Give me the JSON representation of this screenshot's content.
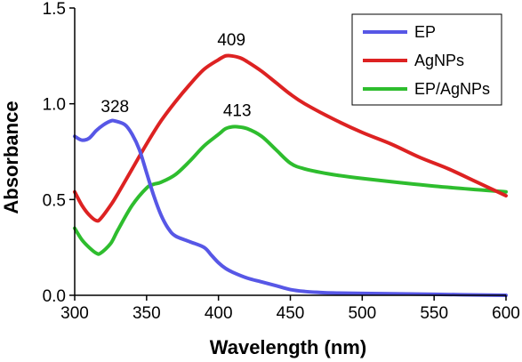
{
  "chart_data": {
    "type": "line",
    "xlabel": "Wavelength (nm)",
    "ylabel": "Absorbance",
    "xlim": [
      300,
      600
    ],
    "ylim": [
      0,
      1.5
    ],
    "x_ticks": [
      "300",
      "350",
      "400",
      "450",
      "500",
      "550",
      "600"
    ],
    "y_ticks": [
      "0.0",
      "0.5",
      "1.0",
      "1.5"
    ],
    "legend_position": "top-right",
    "annotations": [
      {
        "text": "328",
        "x": 328,
        "y": 0.91
      },
      {
        "text": "409",
        "x": 409,
        "y": 1.25
      },
      {
        "text": "413",
        "x": 413,
        "y": 0.88
      }
    ],
    "series": [
      {
        "name": "EP",
        "color": "#5757e6",
        "x": [
          300,
          305,
          310,
          315,
          320,
          325,
          328,
          335,
          340,
          345,
          350,
          355,
          360,
          365,
          370,
          380,
          390,
          395,
          400,
          405,
          410,
          420,
          430,
          440,
          450,
          460,
          470,
          480,
          500,
          550,
          600
        ],
        "y": [
          0.83,
          0.81,
          0.82,
          0.86,
          0.89,
          0.91,
          0.91,
          0.89,
          0.84,
          0.76,
          0.64,
          0.52,
          0.42,
          0.35,
          0.31,
          0.28,
          0.25,
          0.21,
          0.17,
          0.14,
          0.12,
          0.09,
          0.07,
          0.05,
          0.03,
          0.02,
          0.015,
          0.012,
          0.01,
          0.005,
          0.0
        ]
      },
      {
        "name": "AgNPs",
        "color": "#dd2222",
        "x": [
          300,
          305,
          310,
          315,
          318,
          325,
          330,
          340,
          350,
          360,
          370,
          380,
          390,
          400,
          405,
          409,
          415,
          420,
          430,
          440,
          450,
          460,
          480,
          500,
          520,
          540,
          560,
          580,
          600
        ],
        "y": [
          0.54,
          0.47,
          0.42,
          0.39,
          0.4,
          0.47,
          0.53,
          0.66,
          0.79,
          0.91,
          1.01,
          1.1,
          1.18,
          1.23,
          1.25,
          1.25,
          1.24,
          1.22,
          1.17,
          1.11,
          1.05,
          1.0,
          0.92,
          0.85,
          0.79,
          0.72,
          0.66,
          0.59,
          0.52
        ]
      },
      {
        "name": "EP/AgNPs",
        "color": "#2ebd2e",
        "x": [
          300,
          305,
          310,
          315,
          318,
          325,
          330,
          340,
          350,
          355,
          360,
          370,
          380,
          390,
          400,
          405,
          410,
          413,
          420,
          430,
          440,
          450,
          460,
          480,
          500,
          550,
          600
        ],
        "y": [
          0.35,
          0.29,
          0.25,
          0.22,
          0.22,
          0.27,
          0.34,
          0.47,
          0.56,
          0.58,
          0.59,
          0.63,
          0.7,
          0.78,
          0.84,
          0.87,
          0.88,
          0.88,
          0.87,
          0.83,
          0.76,
          0.69,
          0.66,
          0.63,
          0.61,
          0.57,
          0.54
        ]
      }
    ]
  }
}
